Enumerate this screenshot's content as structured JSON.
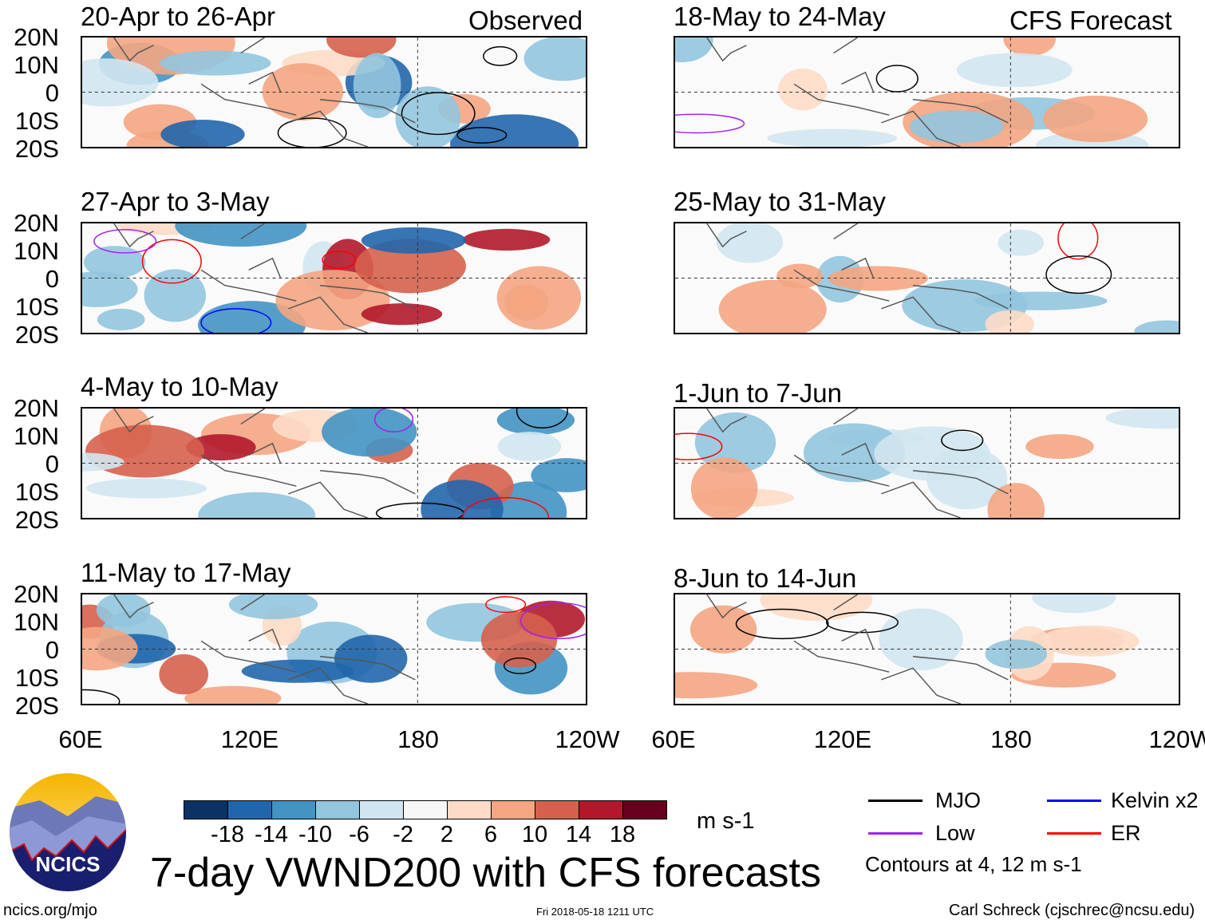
{
  "header": {
    "observed_label": "Observed",
    "forecast_label": "CFS Forecast"
  },
  "panels": {
    "left": [
      "20-Apr to 26-Apr",
      "27-Apr to 3-May",
      "4-May to 10-May",
      "11-May to 17-May"
    ],
    "right": [
      "18-May to 24-May",
      "25-May to 31-May",
      "1-Jun to 7-Jun",
      "8-Jun to 14-Jun"
    ]
  },
  "y_ticks": [
    "20N",
    "10N",
    "0",
    "10S",
    "20S"
  ],
  "x_ticks": [
    "60E",
    "120E",
    "180",
    "120W"
  ],
  "colorbar": {
    "colors": [
      "#0a3264",
      "#2166ac",
      "#4393c3",
      "#92c5de",
      "#d1e5f0",
      "#f7f7f7",
      "#fddbc7",
      "#f4a582",
      "#d6604d",
      "#b2182b",
      "#67001f"
    ],
    "labels": [
      "-18",
      "-14",
      "-10",
      "-6",
      "-2",
      "2",
      "6",
      "10",
      "14",
      "18"
    ],
    "units": "m s-1"
  },
  "legend": {
    "items": [
      {
        "label": "MJO",
        "color": "#000000"
      },
      {
        "label": "Kelvin x2",
        "color": "#0000ff"
      },
      {
        "label": "Low",
        "color": "#a020f0"
      },
      {
        "label": "ER",
        "color": "#ff0000"
      }
    ],
    "note": "Contours at 4, 12 m s-1"
  },
  "title": "7-day VWND200 with CFS forecasts",
  "logo_text": "NCICS",
  "footer": {
    "url": "ncics.org/mjo",
    "timestamp": "Fri 2018-05-18 1211 UTC",
    "credit": "Carl Schreck (cjschrec@ncsu.edu)"
  }
}
